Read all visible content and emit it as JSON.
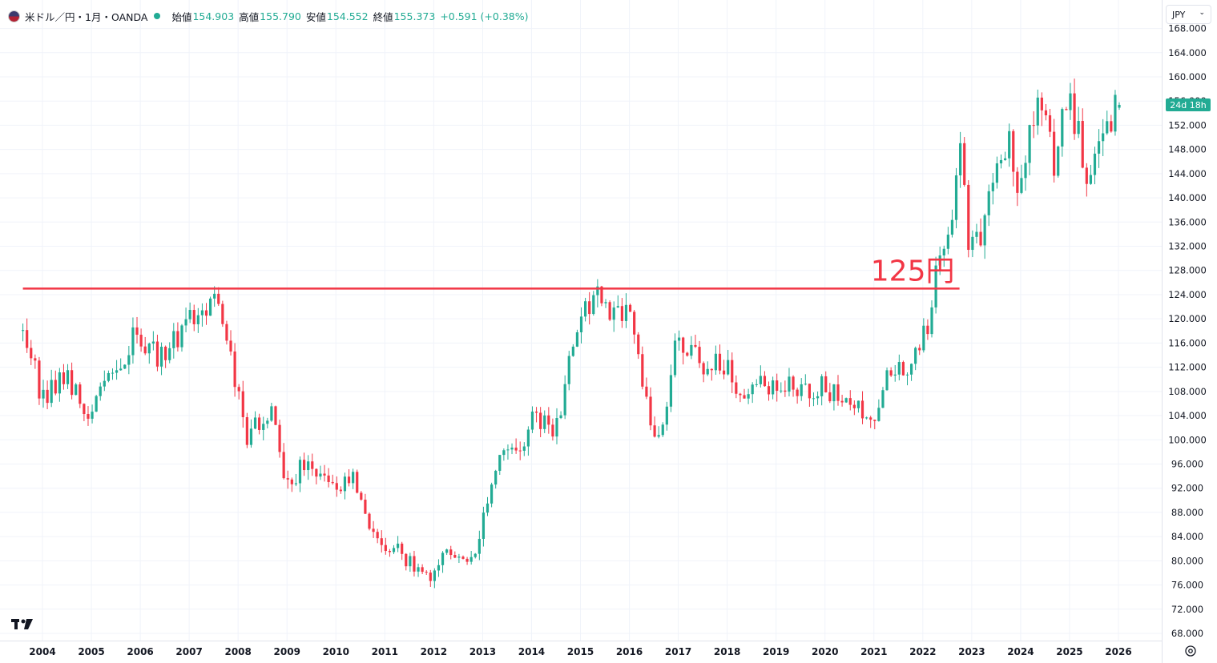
{
  "header": {
    "symbol": "米ドル／円・1月・OANDA",
    "open_label": "始値",
    "open": "154.903",
    "high_label": "高値",
    "high": "155.790",
    "low_label": "安値",
    "low": "154.552",
    "close_label": "終値",
    "close": "155.373",
    "change": "+0.591 (+0.38%)"
  },
  "currency_button": {
    "label": "JPY"
  },
  "countdown_badge": "24d 18h",
  "annotation": {
    "label": "125円",
    "level": 125
  },
  "colors": {
    "up": "#22ab94",
    "down": "#f23645",
    "line": "#f23645",
    "grid": "#f0f3fa"
  },
  "chart_data": {
    "type": "candlestick",
    "title": "米ドル／円・1月・OANDA",
    "y_axis_ticks": [
      "68.000",
      "72.000",
      "76.000",
      "80.000",
      "84.000",
      "88.000",
      "92.000",
      "96.000",
      "100.000",
      "104.000",
      "108.000",
      "112.000",
      "116.000",
      "120.000",
      "124.000",
      "128.000",
      "132.000",
      "136.000",
      "140.000",
      "144.000",
      "148.000",
      "152.000",
      "156.000",
      "160.000",
      "164.000",
      "168.000"
    ],
    "x_axis_ticks": [
      "2004",
      "2005",
      "2006",
      "2007",
      "2008",
      "2009",
      "2010",
      "2011",
      "2012",
      "2013",
      "2014",
      "2015",
      "2016",
      "2017",
      "2018",
      "2019",
      "2020",
      "2021",
      "2022",
      "2023",
      "2024",
      "2025",
      "2026"
    ],
    "ylim": [
      66.5,
      170
    ],
    "x_start": 2003.6,
    "horizontal_line": 125,
    "monthly_close_anchors": [
      [
        2003.6,
        118
      ],
      [
        2004.0,
        107
      ],
      [
        2004.5,
        111
      ],
      [
        2004.9,
        103
      ],
      [
        2005.5,
        112
      ],
      [
        2005.95,
        118
      ],
      [
        2006.4,
        113
      ],
      [
        2006.95,
        119
      ],
      [
        2007.5,
        123
      ],
      [
        2007.9,
        112
      ],
      [
        2008.2,
        100
      ],
      [
        2008.7,
        106
      ],
      [
        2008.95,
        91
      ],
      [
        2009.4,
        97
      ],
      [
        2009.95,
        91
      ],
      [
        2010.35,
        93
      ],
      [
        2010.95,
        81
      ],
      [
        2011.2,
        83
      ],
      [
        2011.75,
        77
      ],
      [
        2011.95,
        77
      ],
      [
        2012.25,
        82
      ],
      [
        2012.45,
        79
      ],
      [
        2012.8,
        80
      ],
      [
        2013.4,
        100
      ],
      [
        2013.7,
        98
      ],
      [
        2014.0,
        103
      ],
      [
        2014.5,
        102
      ],
      [
        2014.95,
        120
      ],
      [
        2015.4,
        124
      ],
      [
        2015.7,
        120
      ],
      [
        2016.0,
        120
      ],
      [
        2016.5,
        101
      ],
      [
        2016.75,
        104
      ],
      [
        2016.95,
        117
      ],
      [
        2017.5,
        112
      ],
      [
        2017.95,
        113
      ],
      [
        2018.2,
        106
      ],
      [
        2018.95,
        110
      ],
      [
        2019.4,
        108
      ],
      [
        2019.95,
        109
      ],
      [
        2020.2,
        108
      ],
      [
        2020.5,
        107
      ],
      [
        2020.95,
        103
      ],
      [
        2021.2,
        110
      ],
      [
        2021.7,
        112
      ],
      [
        2021.95,
        115
      ],
      [
        2022.15,
        121
      ],
      [
        2022.3,
        130
      ],
      [
        2022.6,
        139
      ],
      [
        2022.8,
        148
      ],
      [
        2022.95,
        131
      ],
      [
        2023.2,
        133
      ],
      [
        2023.45,
        145
      ],
      [
        2023.8,
        150
      ],
      [
        2023.95,
        141
      ],
      [
        2024.25,
        152
      ],
      [
        2024.45,
        157
      ],
      [
        2024.7,
        143
      ],
      [
        2024.95,
        158
      ],
      [
        2025.2,
        150
      ],
      [
        2025.35,
        143
      ],
      [
        2025.55,
        147
      ],
      [
        2025.7,
        148
      ],
      [
        2025.95,
        156
      ],
      [
        2026.05,
        155.373
      ]
    ],
    "last_candle": {
      "open": 154.903,
      "high": 155.79,
      "low": 154.552,
      "close": 155.373
    }
  }
}
